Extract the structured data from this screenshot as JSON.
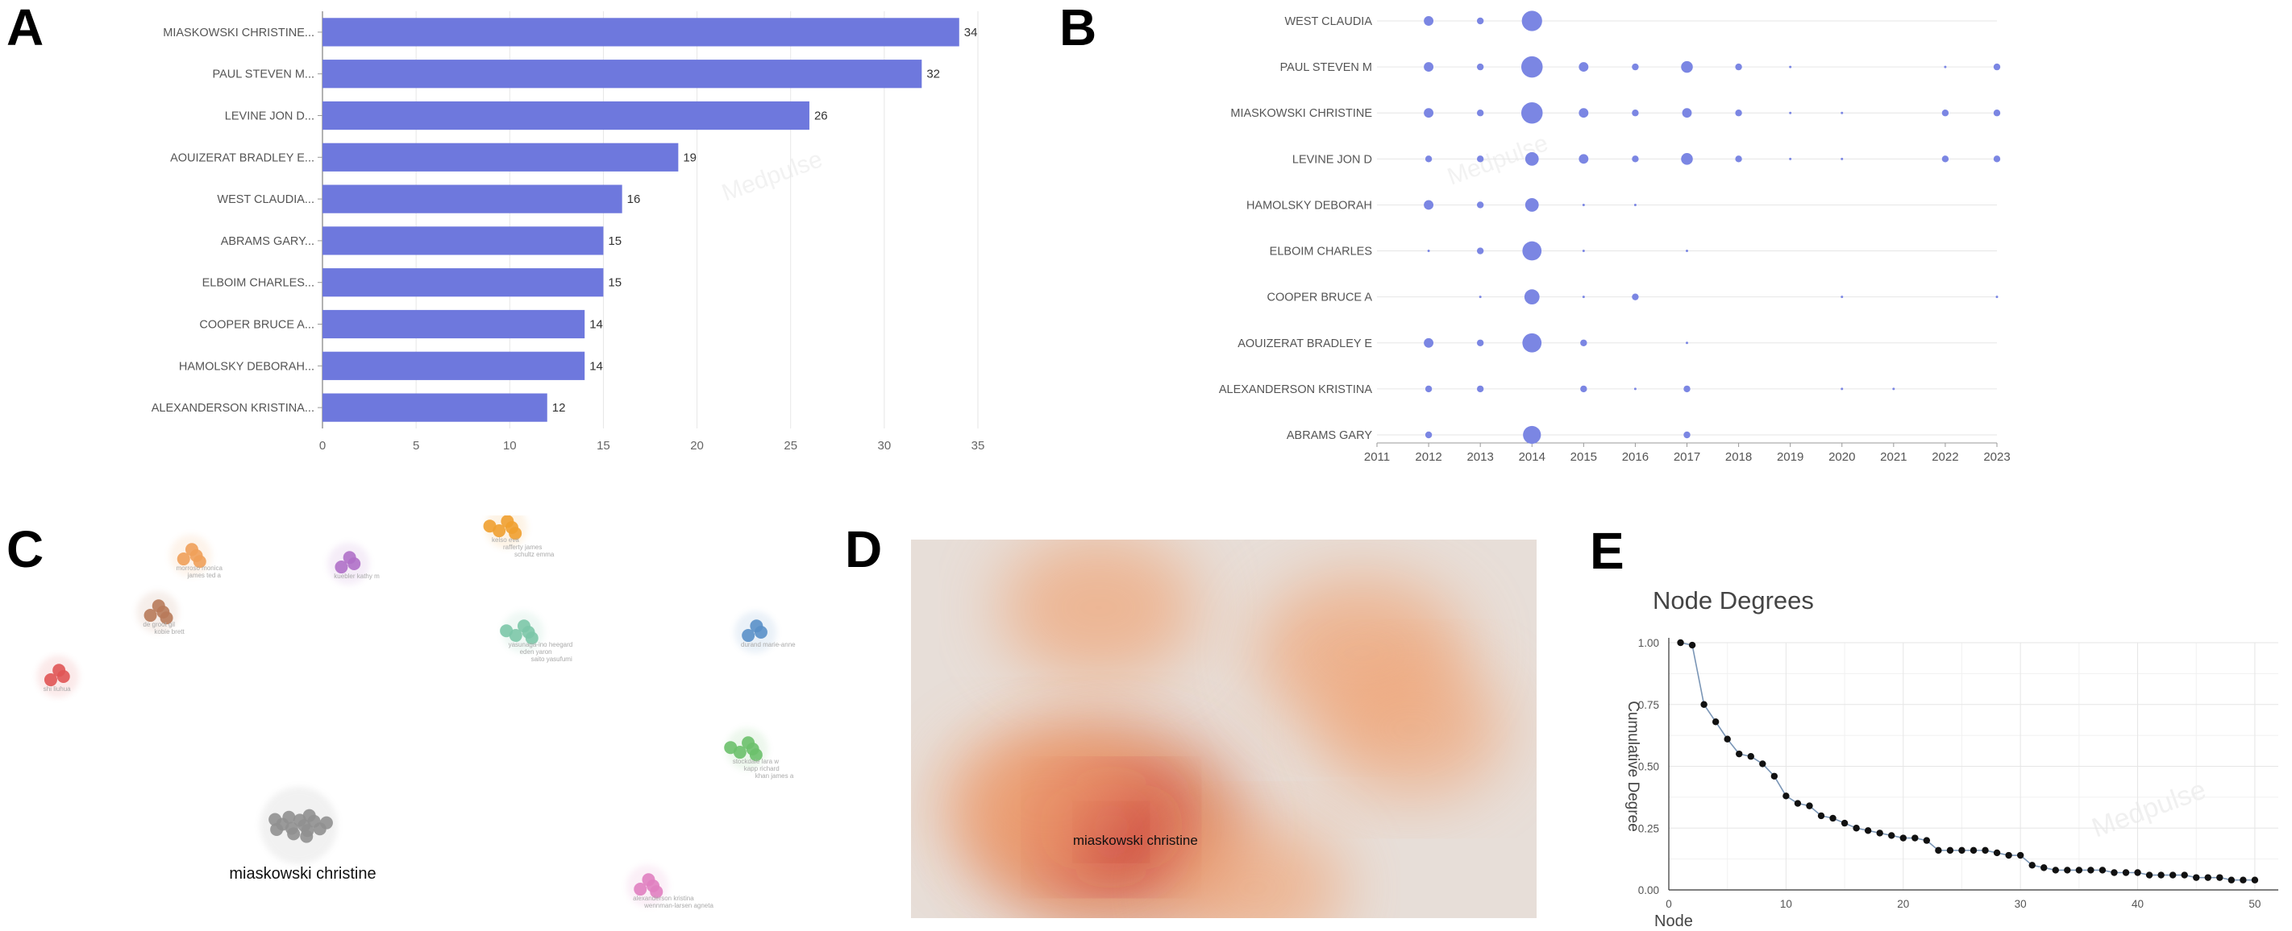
{
  "panels": {
    "a": "A",
    "b": "B",
    "c": "C",
    "d": "D",
    "e": "E"
  },
  "colors": {
    "bar": "#6e78dd",
    "dot": "#7b86e3",
    "grid": "#e6e6e6",
    "axis": "#555555",
    "line_e": "#7b96b6"
  },
  "watermark": "Medpulse",
  "chart_data": [
    {
      "id": "A",
      "type": "bar",
      "orientation": "horizontal",
      "categories": [
        "MIASKOWSKI CHRISTINE...",
        "PAUL STEVEN M...",
        "LEVINE JON D...",
        "AOUIZERAT BRADLEY E...",
        "WEST CLAUDIA...",
        "ABRAMS GARY...",
        "ELBOIM CHARLES...",
        "COOPER BRUCE A...",
        "HAMOLSKY DEBORAH...",
        "ALEXANDERSON KRISTINA..."
      ],
      "values": [
        34,
        32,
        26,
        19,
        16,
        15,
        15,
        14,
        14,
        12
      ],
      "xlim": [
        0,
        35
      ],
      "xticks": [
        0,
        5,
        10,
        15,
        20,
        25,
        30,
        35
      ],
      "title": "",
      "xlabel": "",
      "ylabel": ""
    },
    {
      "id": "B",
      "type": "scatter",
      "subtype": "bubble",
      "authors": [
        "WEST CLAUDIA",
        "PAUL STEVEN M",
        "MIASKOWSKI CHRISTINE",
        "LEVINE JON D",
        "HAMOLSKY DEBORAH",
        "ELBOIM CHARLES",
        "COOPER BRUCE A",
        "AOUIZERAT BRADLEY E",
        "ALEXANDERSON KRISTINA",
        "ABRAMS GARY"
      ],
      "years": [
        2011,
        2012,
        2013,
        2014,
        2015,
        2016,
        2017,
        2018,
        2019,
        2020,
        2021,
        2022,
        2023
      ],
      "points": [
        {
          "author": "WEST CLAUDIA",
          "year": 2012,
          "count": 2
        },
        {
          "author": "WEST CLAUDIA",
          "year": 2013,
          "count": 1
        },
        {
          "author": "WEST CLAUDIA",
          "year": 2014,
          "count": 9
        },
        {
          "author": "PAUL STEVEN M",
          "year": 2012,
          "count": 2
        },
        {
          "author": "PAUL STEVEN M",
          "year": 2013,
          "count": 1
        },
        {
          "author": "PAUL STEVEN M",
          "year": 2014,
          "count": 10
        },
        {
          "author": "PAUL STEVEN M",
          "year": 2015,
          "count": 2
        },
        {
          "author": "PAUL STEVEN M",
          "year": 2016,
          "count": 1
        },
        {
          "author": "PAUL STEVEN M",
          "year": 2017,
          "count": 3
        },
        {
          "author": "PAUL STEVEN M",
          "year": 2018,
          "count": 1
        },
        {
          "author": "PAUL STEVEN M",
          "year": 2019,
          "count": 0.5
        },
        {
          "author": "PAUL STEVEN M",
          "year": 2022,
          "count": 0.5
        },
        {
          "author": "PAUL STEVEN M",
          "year": 2023,
          "count": 1
        },
        {
          "author": "MIASKOWSKI CHRISTINE",
          "year": 2012,
          "count": 2
        },
        {
          "author": "MIASKOWSKI CHRISTINE",
          "year": 2013,
          "count": 1
        },
        {
          "author": "MIASKOWSKI CHRISTINE",
          "year": 2014,
          "count": 10
        },
        {
          "author": "MIASKOWSKI CHRISTINE",
          "year": 2015,
          "count": 2
        },
        {
          "author": "MIASKOWSKI CHRISTINE",
          "year": 2016,
          "count": 1
        },
        {
          "author": "MIASKOWSKI CHRISTINE",
          "year": 2017,
          "count": 2
        },
        {
          "author": "MIASKOWSKI CHRISTINE",
          "year": 2018,
          "count": 1
        },
        {
          "author": "MIASKOWSKI CHRISTINE",
          "year": 2019,
          "count": 0.5
        },
        {
          "author": "MIASKOWSKI CHRISTINE",
          "year": 2020,
          "count": 0.5
        },
        {
          "author": "MIASKOWSKI CHRISTINE",
          "year": 2022,
          "count": 1
        },
        {
          "author": "MIASKOWSKI CHRISTINE",
          "year": 2023,
          "count": 1
        },
        {
          "author": "LEVINE JON D",
          "year": 2012,
          "count": 1
        },
        {
          "author": "LEVINE JON D",
          "year": 2013,
          "count": 1
        },
        {
          "author": "LEVINE JON D",
          "year": 2014,
          "count": 4
        },
        {
          "author": "LEVINE JON D",
          "year": 2015,
          "count": 2
        },
        {
          "author": "LEVINE JON D",
          "year": 2016,
          "count": 1
        },
        {
          "author": "LEVINE JON D",
          "year": 2017,
          "count": 3
        },
        {
          "author": "LEVINE JON D",
          "year": 2018,
          "count": 1
        },
        {
          "author": "LEVINE JON D",
          "year": 2019,
          "count": 0.5
        },
        {
          "author": "LEVINE JON D",
          "year": 2020,
          "count": 0.5
        },
        {
          "author": "LEVINE JON D",
          "year": 2022,
          "count": 1
        },
        {
          "author": "LEVINE JON D",
          "year": 2023,
          "count": 1
        },
        {
          "author": "HAMOLSKY DEBORAH",
          "year": 2012,
          "count": 2
        },
        {
          "author": "HAMOLSKY DEBORAH",
          "year": 2013,
          "count": 1
        },
        {
          "author": "HAMOLSKY DEBORAH",
          "year": 2014,
          "count": 4
        },
        {
          "author": "HAMOLSKY DEBORAH",
          "year": 2015,
          "count": 0.5
        },
        {
          "author": "HAMOLSKY DEBORAH",
          "year": 2016,
          "count": 0.5
        },
        {
          "author": "ELBOIM CHARLES",
          "year": 2012,
          "count": 0.5
        },
        {
          "author": "ELBOIM CHARLES",
          "year": 2013,
          "count": 1
        },
        {
          "author": "ELBOIM CHARLES",
          "year": 2014,
          "count": 8
        },
        {
          "author": "ELBOIM CHARLES",
          "year": 2015,
          "count": 0.5
        },
        {
          "author": "ELBOIM CHARLES",
          "year": 2017,
          "count": 0.5
        },
        {
          "author": "COOPER BRUCE A",
          "year": 2013,
          "count": 0.5
        },
        {
          "author": "COOPER BRUCE A",
          "year": 2014,
          "count": 5
        },
        {
          "author": "COOPER BRUCE A",
          "year": 2015,
          "count": 0.5
        },
        {
          "author": "COOPER BRUCE A",
          "year": 2016,
          "count": 1
        },
        {
          "author": "COOPER BRUCE A",
          "year": 2020,
          "count": 0.5
        },
        {
          "author": "COOPER BRUCE A",
          "year": 2023,
          "count": 0.5
        },
        {
          "author": "AOUIZERAT BRADLEY E",
          "year": 2012,
          "count": 2
        },
        {
          "author": "AOUIZERAT BRADLEY E",
          "year": 2013,
          "count": 1
        },
        {
          "author": "AOUIZERAT BRADLEY E",
          "year": 2014,
          "count": 8
        },
        {
          "author": "AOUIZERAT BRADLEY E",
          "year": 2015,
          "count": 1
        },
        {
          "author": "AOUIZERAT BRADLEY E",
          "year": 2017,
          "count": 0.5
        },
        {
          "author": "ALEXANDERSON KRISTINA",
          "year": 2012,
          "count": 1
        },
        {
          "author": "ALEXANDERSON KRISTINA",
          "year": 2013,
          "count": 1
        },
        {
          "author": "ALEXANDERSON KRISTINA",
          "year": 2015,
          "count": 1
        },
        {
          "author": "ALEXANDERSON KRISTINA",
          "year": 2016,
          "count": 0.5
        },
        {
          "author": "ALEXANDERSON KRISTINA",
          "year": 2017,
          "count": 1
        },
        {
          "author": "ALEXANDERSON KRISTINA",
          "year": 2020,
          "count": 0.5
        },
        {
          "author": "ALEXANDERSON KRISTINA",
          "year": 2021,
          "count": 0.5
        },
        {
          "author": "ABRAMS GARY",
          "year": 2012,
          "count": 1
        },
        {
          "author": "ABRAMS GARY",
          "year": 2014,
          "count": 7
        },
        {
          "author": "ABRAMS GARY",
          "year": 2017,
          "count": 1
        }
      ],
      "title": "",
      "xlabel": "",
      "ylabel": ""
    },
    {
      "id": "C",
      "type": "scatter",
      "subtype": "network-clusters",
      "highlight_label": "miaskowski christine",
      "clusters": [
        {
          "color": "#f0a05a",
          "x": 0.22,
          "y": 0.92,
          "labels": [
            "morroso monica",
            "james ted a"
          ]
        },
        {
          "color": "#b070c8",
          "x": 0.41,
          "y": 0.9,
          "labels": [
            "kuebler kathy m"
          ]
        },
        {
          "color": "#f0a030",
          "x": 0.6,
          "y": 0.99,
          "labels": [
            "kelso eva",
            "rafferty james",
            "schultz emma"
          ]
        },
        {
          "color": "#b87a5a",
          "x": 0.18,
          "y": 0.78,
          "labels": [
            "de groot gil",
            "kobie brett"
          ]
        },
        {
          "color": "#e05555",
          "x": 0.06,
          "y": 0.62,
          "labels": [
            "shi liuhua"
          ]
        },
        {
          "color": "#7cc7a8",
          "x": 0.62,
          "y": 0.73,
          "labels": [
            "yasunaga-ino heegard",
            "eden yaron",
            "saito yasufumi"
          ]
        },
        {
          "color": "#5a90c8",
          "x": 0.9,
          "y": 0.73,
          "labels": [
            "durand marie-anne"
          ]
        },
        {
          "color": "#6cc06c",
          "x": 0.89,
          "y": 0.44,
          "labels": [
            "stockdale lara w",
            "kapp richard",
            "khan james a"
          ]
        },
        {
          "color": "#e080c0",
          "x": 0.77,
          "y": 0.1,
          "labels": [
            "alexanderson kristina",
            "wennman-larsen agneta"
          ]
        },
        {
          "color": "#909090",
          "x": 0.35,
          "y": 0.25,
          "labels": [
            "miaskowski christine"
          ]
        }
      ]
    },
    {
      "id": "D",
      "type": "heatmap",
      "subtype": "density",
      "highlight_label": "miaskowski christine",
      "hotspots": [
        {
          "x": 0.32,
          "y": 0.24,
          "intensity": 1.0
        },
        {
          "x": 0.22,
          "y": 0.3,
          "intensity": 0.6
        },
        {
          "x": 0.72,
          "y": 0.7,
          "intensity": 0.55
        },
        {
          "x": 0.3,
          "y": 0.82,
          "intensity": 0.45
        },
        {
          "x": 0.8,
          "y": 0.5,
          "intensity": 0.35
        },
        {
          "x": 0.55,
          "y": 0.08,
          "intensity": 0.3
        }
      ]
    },
    {
      "id": "E",
      "type": "line",
      "title": "Node Degrees",
      "xlabel": "Node",
      "ylabel": "Cumulative Degree",
      "xlim": [
        0,
        52
      ],
      "ylim": [
        0,
        1
      ],
      "xticks": [
        0,
        10,
        20,
        30,
        40,
        50
      ],
      "yticks": [
        "0.00",
        "0.25",
        "0.50",
        "0.75",
        "1.00"
      ],
      "x": [
        1,
        2,
        3,
        4,
        5,
        6,
        7,
        8,
        9,
        10,
        11,
        12,
        13,
        14,
        15,
        16,
        17,
        18,
        19,
        20,
        21,
        22,
        23,
        24,
        25,
        26,
        27,
        28,
        29,
        30,
        31,
        32,
        33,
        34,
        35,
        36,
        37,
        38,
        39,
        40,
        41,
        42,
        43,
        44,
        45,
        46,
        47,
        48,
        49,
        50
      ],
      "values": [
        1.0,
        0.99,
        0.75,
        0.68,
        0.61,
        0.55,
        0.54,
        0.51,
        0.46,
        0.38,
        0.35,
        0.34,
        0.3,
        0.29,
        0.27,
        0.25,
        0.24,
        0.23,
        0.22,
        0.21,
        0.21,
        0.2,
        0.16,
        0.16,
        0.16,
        0.16,
        0.16,
        0.15,
        0.14,
        0.14,
        0.1,
        0.09,
        0.08,
        0.08,
        0.08,
        0.08,
        0.08,
        0.07,
        0.07,
        0.07,
        0.06,
        0.06,
        0.06,
        0.06,
        0.05,
        0.05,
        0.05,
        0.04,
        0.04,
        0.04
      ]
    }
  ]
}
